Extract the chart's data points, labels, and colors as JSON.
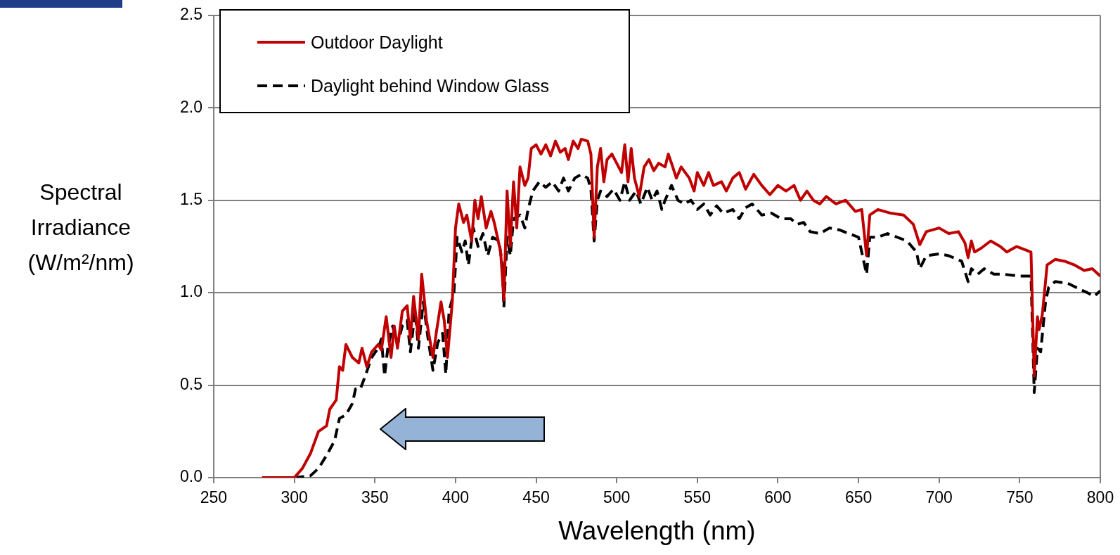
{
  "chart_data": {
    "type": "line",
    "xlabel": "Wavelength (nm)",
    "ylabel": "Spectral Irradiance (W/m²/nm)",
    "xlim": [
      250,
      800
    ],
    "xticks": [
      250,
      300,
      350,
      400,
      450,
      500,
      550,
      600,
      650,
      700,
      750,
      800
    ],
    "ylim": [
      0,
      2.5
    ],
    "yticks": [
      {
        "value": 0,
        "label": "0.0"
      },
      {
        "value": 0.5,
        "label": "0.5"
      },
      {
        "value": 1,
        "label": "1.0"
      },
      {
        "value": 1.5,
        "label": "1.5"
      },
      {
        "value": 2,
        "label": "2.0"
      },
      {
        "value": 2.5,
        "label": "2.5"
      }
    ],
    "grid": "y",
    "legend": "top left",
    "marker": "none",
    "series": [
      {
        "name": "Outdoor Daylight",
        "color": "#c00000",
        "line_style": "solid",
        "x": [
          280,
          300,
          305,
          310,
          315,
          320,
          322,
          326,
          328,
          330,
          332,
          336,
          340,
          342,
          345,
          348,
          352,
          354,
          357,
          360,
          362,
          364,
          367,
          370,
          372,
          374,
          377,
          379,
          382,
          386,
          388,
          391,
          393,
          395,
          398,
          400,
          402,
          405,
          407,
          410,
          412,
          414,
          416,
          419,
          422,
          424,
          426,
          428,
          430,
          432,
          434,
          436,
          438,
          440,
          443,
          445,
          447,
          450,
          453,
          456,
          459,
          462,
          465,
          468,
          470,
          473,
          476,
          478,
          482,
          484,
          486,
          488,
          490,
          492,
          494,
          497,
          500,
          503,
          505,
          507,
          509,
          511,
          514,
          517,
          520,
          523,
          526,
          530,
          532,
          534,
          537,
          540,
          545,
          548,
          550,
          554,
          557,
          560,
          565,
          568,
          572,
          576,
          580,
          585,
          590,
          595,
          600,
          605,
          610,
          614,
          618,
          622,
          626,
          630,
          636,
          642,
          648,
          652,
          655,
          657,
          662,
          670,
          678,
          684,
          688,
          692,
          700,
          706,
          712,
          716,
          718,
          720,
          722,
          726,
          732,
          738,
          742,
          748,
          754,
          757,
          759,
          761,
          762,
          764,
          767,
          772,
          778,
          784,
          790,
          795,
          800
        ],
        "values": [
          0,
          0,
          0.05,
          0.13,
          0.25,
          0.28,
          0.37,
          0.42,
          0.6,
          0.58,
          0.72,
          0.65,
          0.62,
          0.7,
          0.6,
          0.68,
          0.72,
          0.69,
          0.87,
          0.65,
          0.82,
          0.7,
          0.9,
          0.93,
          0.75,
          0.98,
          0.75,
          1.1,
          0.85,
          0.65,
          0.78,
          0.95,
          0.85,
          0.65,
          0.95,
          1.35,
          1.48,
          1.38,
          1.42,
          1.28,
          1.5,
          1.4,
          1.52,
          1.35,
          1.44,
          1.38,
          1.3,
          1.22,
          0.96,
          1.55,
          1.25,
          1.6,
          1.35,
          1.68,
          1.58,
          1.62,
          1.78,
          1.8,
          1.75,
          1.8,
          1.74,
          1.82,
          1.76,
          1.78,
          1.72,
          1.82,
          1.78,
          1.83,
          1.82,
          1.75,
          1.3,
          1.68,
          1.78,
          1.6,
          1.72,
          1.75,
          1.7,
          1.65,
          1.8,
          1.6,
          1.78,
          1.62,
          1.52,
          1.68,
          1.72,
          1.66,
          1.7,
          1.68,
          1.75,
          1.7,
          1.62,
          1.68,
          1.62,
          1.55,
          1.65,
          1.58,
          1.65,
          1.58,
          1.6,
          1.55,
          1.62,
          1.65,
          1.56,
          1.64,
          1.58,
          1.53,
          1.58,
          1.55,
          1.58,
          1.5,
          1.55,
          1.5,
          1.48,
          1.52,
          1.48,
          1.5,
          1.44,
          1.45,
          1.2,
          1.42,
          1.45,
          1.43,
          1.42,
          1.37,
          1.26,
          1.33,
          1.35,
          1.32,
          1.33,
          1.27,
          1.19,
          1.28,
          1.22,
          1.24,
          1.28,
          1.25,
          1.22,
          1.25,
          1.23,
          1.22,
          0.55,
          0.87,
          0.8,
          0.88,
          1.15,
          1.18,
          1.17,
          1.15,
          1.12,
          1.13,
          1.09
        ]
      },
      {
        "name": "Daylight behind Window Glass",
        "color": "#000000",
        "line_style": "dashed",
        "x": [
          300,
          310,
          315,
          320,
          325,
          328,
          332,
          336,
          338,
          341,
          344,
          348,
          352,
          354,
          356,
          358,
          361,
          364,
          367,
          370,
          372,
          375,
          377,
          380,
          383,
          386,
          389,
          392,
          394,
          396,
          399,
          401,
          404,
          406,
          408,
          411,
          414,
          417,
          420,
          423,
          427,
          429,
          430,
          432,
          434,
          436,
          440,
          443,
          445,
          448,
          452,
          456,
          460,
          464,
          467,
          470,
          474,
          478,
          482,
          484,
          486,
          488,
          490,
          494,
          498,
          502,
          505,
          508,
          512,
          515,
          519,
          522,
          525,
          528,
          530,
          534,
          538,
          542,
          546,
          550,
          554,
          558,
          562,
          566,
          572,
          576,
          580,
          584,
          590,
          596,
          602,
          608,
          612,
          616,
          620,
          626,
          632,
          638,
          644,
          650,
          655,
          657,
          662,
          668,
          674,
          680,
          686,
          688,
          692,
          700,
          706,
          714,
          718,
          720,
          724,
          728,
          734,
          740,
          750,
          757,
          759,
          761,
          763,
          766,
          768,
          772,
          780,
          787,
          792,
          796,
          800
        ],
        "values": [
          0,
          0.01,
          0.05,
          0.12,
          0.2,
          0.32,
          0.34,
          0.4,
          0.48,
          0.48,
          0.55,
          0.65,
          0.7,
          0.75,
          0.55,
          0.7,
          0.82,
          0.72,
          0.82,
          0.85,
          0.68,
          0.9,
          0.7,
          0.95,
          0.75,
          0.58,
          0.73,
          0.78,
          0.56,
          0.9,
          1.0,
          1.3,
          1.22,
          1.28,
          1.15,
          1.35,
          1.25,
          1.32,
          1.2,
          1.3,
          1.28,
          1.15,
          0.92,
          1.3,
          1.2,
          1.4,
          1.42,
          1.35,
          1.45,
          1.55,
          1.6,
          1.57,
          1.6,
          1.55,
          1.62,
          1.55,
          1.62,
          1.64,
          1.62,
          1.56,
          1.28,
          1.5,
          1.55,
          1.52,
          1.56,
          1.5,
          1.6,
          1.5,
          1.55,
          1.48,
          1.57,
          1.5,
          1.55,
          1.45,
          1.5,
          1.58,
          1.5,
          1.48,
          1.5,
          1.45,
          1.48,
          1.42,
          1.47,
          1.43,
          1.45,
          1.4,
          1.46,
          1.48,
          1.42,
          1.43,
          1.4,
          1.4,
          1.37,
          1.38,
          1.33,
          1.32,
          1.35,
          1.34,
          1.32,
          1.3,
          1.1,
          1.3,
          1.3,
          1.32,
          1.3,
          1.28,
          1.22,
          1.13,
          1.2,
          1.21,
          1.2,
          1.17,
          1.06,
          1.13,
          1.1,
          1.13,
          1.1,
          1.1,
          1.09,
          1.09,
          0.46,
          0.7,
          0.68,
          0.95,
          1.03,
          1.06,
          1.05,
          1.02,
          1.0,
          0.98,
          1.01
        ]
      }
    ]
  }
}
